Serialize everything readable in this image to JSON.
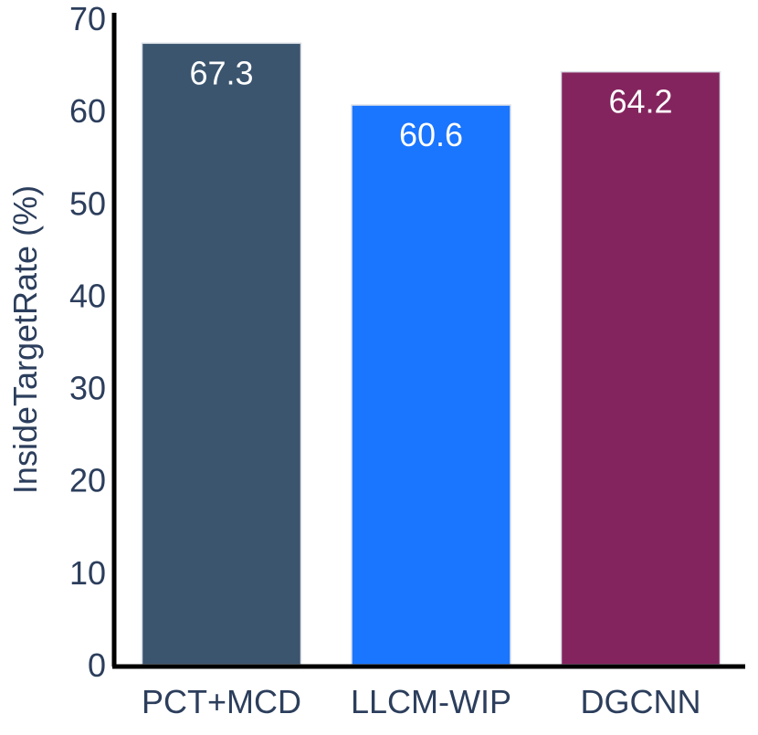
{
  "chart_data": {
    "type": "bar",
    "categories": [
      "PCT+MCD",
      "LLCM-WIP",
      "DGCNN"
    ],
    "values": [
      67.3,
      60.6,
      64.2
    ],
    "value_labels": [
      "67.3",
      "60.6",
      "64.2"
    ],
    "colors": [
      "#3b556f",
      "#1a75ff",
      "#84245e"
    ],
    "title": "",
    "xlabel": "",
    "ylabel": "InsideTargetRate (%)",
    "ylim": [
      0,
      70
    ],
    "yticks": [
      0,
      10,
      20,
      30,
      40,
      50,
      60,
      70
    ],
    "ytick_labels": [
      "0",
      "10",
      "20",
      "30",
      "40",
      "50",
      "60",
      "70"
    ],
    "grid": false,
    "legend": "none"
  }
}
